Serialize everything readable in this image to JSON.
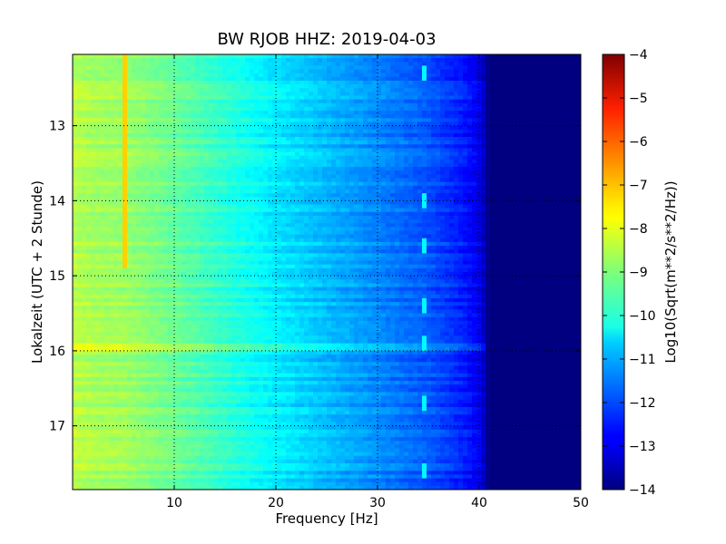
{
  "chart_data": {
    "type": "heatmap",
    "title": "BW RJOB HHZ: 2019-04-03",
    "xlabel": "Frequency [Hz]",
    "ylabel": "Lokalzeit (UTC + 2 Stunde)",
    "xlim": [
      0,
      50
    ],
    "ylim": [
      12.05,
      17.85
    ],
    "y_inverted": true,
    "x_ticks": [
      10,
      20,
      30,
      40,
      50
    ],
    "y_ticks": [
      13,
      14,
      15,
      16,
      17
    ],
    "grid": true,
    "colorscale": "jet",
    "colorbar": {
      "label": "Log10(Sqrt(m**2/s**2/Hz))",
      "range": [
        -14,
        -4
      ],
      "ticks": [
        -4,
        -5,
        -6,
        -7,
        -8,
        -9,
        -10,
        -11,
        -12,
        -13,
        -14
      ]
    },
    "spectrum_profile": {
      "frequency_hz": [
        0,
        2,
        5,
        10,
        15,
        20,
        25,
        30,
        35,
        38,
        40,
        41,
        45,
        50
      ],
      "log10_amplitude": [
        -8.4,
        -8.6,
        -8.7,
        -9.2,
        -9.8,
        -10.4,
        -10.9,
        -11.4,
        -11.9,
        -12.4,
        -12.9,
        -14,
        -14,
        -14
      ]
    },
    "features": [
      {
        "label": "narrow band",
        "frequency_hz": 5,
        "time_range": [
          12.05,
          14.9
        ],
        "log10_amplitude": -7.3
      },
      {
        "label": "wandering tone",
        "frequency_hz": 34.5,
        "times": [
          12.3,
          14.0,
          14.6,
          15.4,
          15.9,
          16.7,
          17.6
        ],
        "log10_amplitude": -10.3
      },
      {
        "label": "broadband line",
        "time": 15.95,
        "log10_amplitude_offset": 0.5
      }
    ]
  }
}
